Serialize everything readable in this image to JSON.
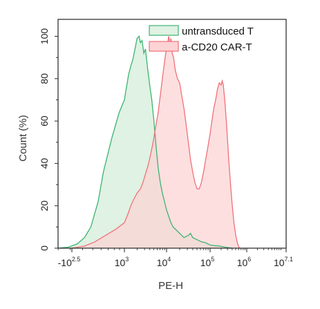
{
  "chart_data": {
    "type": "area",
    "title": "",
    "xlabel": "PE-H",
    "ylabel": "Count (%)",
    "xscale": "log (biexponential)",
    "ylim": [
      0,
      108
    ],
    "yticks": [
      0,
      20,
      40,
      60,
      80,
      100
    ],
    "xticks": [
      {
        "base": "-10",
        "exp": "2.5"
      },
      {
        "base": "10",
        "exp": "3"
      },
      {
        "base": "10",
        "exp": "4"
      },
      {
        "base": "10",
        "exp": "5"
      },
      {
        "base": "10",
        "exp": "6"
      },
      {
        "base": "10",
        "exp": "7.1"
      }
    ],
    "grid": false,
    "legend_position": "top-right",
    "series": [
      {
        "name": "untransduced T",
        "color": "#3cb371",
        "fill": "#dff2e3",
        "points": [
          [
            2.3,
            0
          ],
          [
            2.45,
            0.5
          ],
          [
            2.55,
            2
          ],
          [
            2.62,
            5
          ],
          [
            2.68,
            10
          ],
          [
            2.75,
            22
          ],
          [
            2.8,
            36
          ],
          [
            2.88,
            52
          ],
          [
            2.95,
            64
          ],
          [
            3.0,
            70
          ],
          [
            3.05,
            76
          ],
          [
            3.1,
            82
          ],
          [
            3.15,
            86
          ],
          [
            3.2,
            89
          ],
          [
            3.25,
            94
          ],
          [
            3.3,
            99
          ],
          [
            3.35,
            100
          ],
          [
            3.38,
            97
          ],
          [
            3.42,
            98
          ],
          [
            3.46,
            92
          ],
          [
            3.5,
            94
          ],
          [
            3.55,
            85
          ],
          [
            3.6,
            77
          ],
          [
            3.65,
            70
          ],
          [
            3.7,
            60
          ],
          [
            3.75,
            48
          ],
          [
            3.8,
            38
          ],
          [
            3.85,
            31
          ],
          [
            3.9,
            26
          ],
          [
            3.95,
            22
          ],
          [
            4.0,
            18
          ],
          [
            4.05,
            15
          ],
          [
            4.1,
            12
          ],
          [
            4.15,
            10
          ],
          [
            4.2,
            9
          ],
          [
            4.25,
            8
          ],
          [
            4.3,
            7
          ],
          [
            4.35,
            6
          ],
          [
            4.4,
            5
          ],
          [
            4.45,
            5.5
          ],
          [
            4.5,
            6
          ],
          [
            4.55,
            7
          ],
          [
            4.6,
            5
          ],
          [
            4.7,
            4
          ],
          [
            4.8,
            3
          ],
          [
            4.9,
            2.5
          ],
          [
            5.0,
            1.5
          ],
          [
            5.1,
            1.2
          ],
          [
            5.25,
            1
          ],
          [
            5.4,
            0.5
          ],
          [
            5.6,
            0
          ]
        ]
      },
      {
        "name": "a-CD20 CAR-T",
        "color": "#f07078",
        "fill": "#fcd3d4",
        "points": [
          [
            2.5,
            0
          ],
          [
            2.62,
            1
          ],
          [
            2.72,
            3
          ],
          [
            2.82,
            6
          ],
          [
            2.92,
            9
          ],
          [
            3.0,
            12
          ],
          [
            3.08,
            16
          ],
          [
            3.15,
            20
          ],
          [
            3.22,
            23
          ],
          [
            3.3,
            26
          ],
          [
            3.38,
            28
          ],
          [
            3.44,
            31
          ],
          [
            3.5,
            35
          ],
          [
            3.56,
            39
          ],
          [
            3.62,
            44
          ],
          [
            3.68,
            50
          ],
          [
            3.74,
            57
          ],
          [
            3.8,
            64
          ],
          [
            3.85,
            72
          ],
          [
            3.9,
            80
          ],
          [
            3.94,
            86
          ],
          [
            3.98,
            92
          ],
          [
            4.02,
            96
          ],
          [
            4.05,
            100
          ],
          [
            4.08,
            96
          ],
          [
            4.1,
            99
          ],
          [
            4.13,
            92
          ],
          [
            4.16,
            90
          ],
          [
            4.2,
            84
          ],
          [
            4.25,
            80
          ],
          [
            4.3,
            78
          ],
          [
            4.35,
            72
          ],
          [
            4.4,
            66
          ],
          [
            4.45,
            58
          ],
          [
            4.5,
            50
          ],
          [
            4.55,
            42
          ],
          [
            4.6,
            36
          ],
          [
            4.65,
            31
          ],
          [
            4.7,
            28
          ],
          [
            4.75,
            28
          ],
          [
            4.8,
            31
          ],
          [
            4.85,
            36
          ],
          [
            4.9,
            42
          ],
          [
            4.95,
            48
          ],
          [
            5.0,
            54
          ],
          [
            5.05,
            60
          ],
          [
            5.1,
            66
          ],
          [
            5.15,
            70
          ],
          [
            5.2,
            75
          ],
          [
            5.25,
            78
          ],
          [
            5.3,
            77
          ],
          [
            5.33,
            79
          ],
          [
            5.36,
            77
          ],
          [
            5.4,
            70
          ],
          [
            5.45,
            58
          ],
          [
            5.5,
            44
          ],
          [
            5.55,
            32
          ],
          [
            5.6,
            21
          ],
          [
            5.65,
            12
          ],
          [
            5.7,
            6
          ],
          [
            5.75,
            2
          ],
          [
            5.8,
            0
          ]
        ]
      }
    ]
  }
}
